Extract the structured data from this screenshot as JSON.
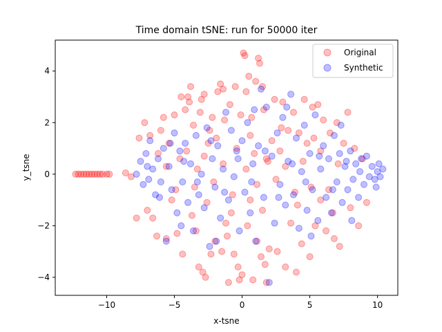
{
  "chart_data": {
    "type": "scatter",
    "title": "Time domain tSNE: run for 50000 iter",
    "xlabel": "x-tsne",
    "ylabel": "y_tsne",
    "xlim": [
      -13.8,
      11.5
    ],
    "ylim": [
      -4.7,
      5.2
    ],
    "xticks": [
      -10,
      -5,
      0,
      5,
      10
    ],
    "yticks": [
      -4,
      -2,
      0,
      2,
      4
    ],
    "grid": false,
    "legend": "top-right",
    "series": [
      {
        "name": "Original",
        "color": "#ff0000",
        "alpha": 0.25,
        "points": [
          [
            -12.3,
            0.0
          ],
          [
            -12.1,
            0.0
          ],
          [
            -11.9,
            0.0
          ],
          [
            -11.7,
            0.0
          ],
          [
            -11.5,
            0.0
          ],
          [
            -11.3,
            0.0
          ],
          [
            -11.1,
            0.0
          ],
          [
            -10.9,
            0.0
          ],
          [
            -10.7,
            0.0
          ],
          [
            -10.5,
            0.0
          ],
          [
            -10.3,
            0.0
          ],
          [
            -10.0,
            0.0
          ],
          [
            -9.8,
            0.0
          ],
          [
            -8.6,
            0.05
          ],
          [
            -8.2,
            -0.1
          ],
          [
            -7.8,
            -1.7
          ],
          [
            -7.6,
            1.4
          ],
          [
            -7.2,
            2.0
          ],
          [
            -7.0,
            -1.4
          ],
          [
            -6.8,
            1.5
          ],
          [
            -6.6,
            -1.7
          ],
          [
            -6.3,
            -2.4
          ],
          [
            -6.0,
            1.7
          ],
          [
            -5.8,
            2.2
          ],
          [
            -5.6,
            -2.5
          ],
          [
            -5.4,
            1.2
          ],
          [
            -5.2,
            -1.0
          ],
          [
            -5.0,
            2.3
          ],
          [
            -4.8,
            -2.3
          ],
          [
            -4.6,
            0.6
          ],
          [
            -4.5,
            3.0
          ],
          [
            -4.4,
            -3.1
          ],
          [
            -4.2,
            2.5
          ],
          [
            -4.0,
            3.0
          ],
          [
            -3.9,
            2.8
          ],
          [
            -3.8,
            3.4
          ],
          [
            -3.6,
            1.9
          ],
          [
            -3.4,
            -2.2
          ],
          [
            -3.3,
            0.2
          ],
          [
            -3.2,
            -3.6
          ],
          [
            -3.1,
            2.4
          ],
          [
            -3.0,
            2.9
          ],
          [
            -2.9,
            -3.8
          ],
          [
            -2.8,
            3.1
          ],
          [
            -2.7,
            -4.0
          ],
          [
            -2.6,
            -1.1
          ],
          [
            -2.4,
            1.7
          ],
          [
            -2.3,
            -3.1
          ],
          [
            -2.2,
            2.2
          ],
          [
            -2.0,
            -2.6
          ],
          [
            -1.9,
            1.4
          ],
          [
            -1.8,
            3.2
          ],
          [
            -1.6,
            3.5
          ],
          [
            -1.5,
            -3.0
          ],
          [
            -1.4,
            3.3
          ],
          [
            -1.3,
            2.1
          ],
          [
            -1.1,
            -2.4
          ],
          [
            -1.0,
            -4.2
          ],
          [
            -0.9,
            2.7
          ],
          [
            -0.8,
            -1.5
          ],
          [
            -0.6,
            -3.1
          ],
          [
            -0.5,
            3.4
          ],
          [
            -0.4,
            1.0
          ],
          [
            -0.3,
            -3.6
          ],
          [
            -0.2,
            -4.1
          ],
          [
            -0.1,
            2.3
          ],
          [
            0.0,
            -3.9
          ],
          [
            0.1,
            4.7
          ],
          [
            0.2,
            4.6
          ],
          [
            0.3,
            3.2
          ],
          [
            0.4,
            -2.0
          ],
          [
            0.5,
            3.8
          ],
          [
            0.6,
            -1.0
          ],
          [
            0.7,
            2.2
          ],
          [
            0.8,
            -4.1
          ],
          [
            0.9,
            0.8
          ],
          [
            1.0,
            3.6
          ],
          [
            1.1,
            -2.6
          ],
          [
            1.2,
            4.5
          ],
          [
            1.3,
            4.3
          ],
          [
            1.4,
            -3.2
          ],
          [
            1.5,
            3.4
          ],
          [
            1.6,
            2.5
          ],
          [
            1.7,
            -3.5
          ],
          [
            1.8,
            -4.2
          ],
          [
            1.9,
            0.5
          ],
          [
            2.0,
            -2.9
          ],
          [
            2.2,
            1.3
          ],
          [
            2.4,
            2.9
          ],
          [
            2.6,
            -3.0
          ],
          [
            2.8,
            0.9
          ],
          [
            3.0,
            2.8
          ],
          [
            3.2,
            -3.6
          ],
          [
            3.4,
            1.7
          ],
          [
            3.6,
            -1.9
          ],
          [
            3.8,
            2.4
          ],
          [
            4.0,
            -3.8
          ],
          [
            4.2,
            1.6
          ],
          [
            4.4,
            -2.7
          ],
          [
            4.6,
            2.9
          ],
          [
            4.8,
            1.2
          ],
          [
            5.0,
            -3.2
          ],
          [
            5.2,
            2.6
          ],
          [
            5.4,
            -2.0
          ],
          [
            5.6,
            2.7
          ],
          [
            5.8,
            -1.0
          ],
          [
            6.0,
            2.1
          ],
          [
            6.2,
            -2.2
          ],
          [
            6.5,
            1.6
          ],
          [
            6.8,
            -2.5
          ],
          [
            7.0,
            2.0
          ],
          [
            7.2,
            -2.8
          ],
          [
            7.5,
            1.2
          ],
          [
            7.8,
            2.4
          ],
          [
            8.0,
            -1.3
          ],
          [
            8.3,
            1.0
          ],
          [
            8.6,
            -2.0
          ],
          [
            8.9,
            0.6
          ],
          [
            9.2,
            -1.1
          ],
          [
            -5.6,
            0.3
          ],
          [
            -4.9,
            -0.6
          ],
          [
            -4.1,
            0.9
          ],
          [
            -3.5,
            -0.5
          ],
          [
            -2.8,
            0.7
          ],
          [
            -2.1,
            -0.3
          ],
          [
            -1.4,
            0.4
          ],
          [
            -0.7,
            -0.8
          ],
          [
            0.3,
            0.2
          ],
          [
            1.1,
            -0.4
          ],
          [
            1.8,
            0.6
          ],
          [
            2.5,
            -0.2
          ],
          [
            3.2,
            0.3
          ],
          [
            3.9,
            -0.7
          ],
          [
            4.5,
            0.5
          ],
          [
            5.1,
            -0.5
          ],
          [
            5.8,
            0.9
          ],
          [
            6.4,
            -0.6
          ],
          [
            7.1,
            0.4
          ],
          [
            -6.2,
            0.8
          ],
          [
            -3.7,
            -1.6
          ],
          [
            -2.5,
            1.2
          ],
          [
            -1.2,
            -1.9
          ],
          [
            0.6,
            1.5
          ],
          [
            1.5,
            -1.4
          ],
          [
            2.9,
            1.8
          ],
          [
            4.1,
            -1.2
          ],
          [
            5.3,
            1.4
          ],
          [
            6.7,
            -1.5
          ]
        ]
      },
      {
        "name": "Synthetic",
        "color": "#0000ff",
        "alpha": 0.25,
        "points": [
          [
            -7.8,
            0.0
          ],
          [
            -7.5,
            0.5
          ],
          [
            -7.3,
            -0.4
          ],
          [
            -7.1,
            0.8
          ],
          [
            -6.9,
            -0.2
          ],
          [
            -6.8,
            1.3
          ],
          [
            -6.6,
            0.2
          ],
          [
            -6.4,
            -0.8
          ],
          [
            -6.2,
            0.6
          ],
          [
            -6.0,
            -0.3
          ],
          [
            -5.8,
            1.0
          ],
          [
            -5.6,
            -2.6
          ],
          [
            -5.4,
            0.3
          ],
          [
            -5.2,
            -0.6
          ],
          [
            -5.0,
            1.6
          ],
          [
            -4.8,
            -1.5
          ],
          [
            -4.6,
            0.9
          ],
          [
            -4.4,
            -0.3
          ],
          [
            -4.2,
            1.2
          ],
          [
            -4.0,
            -1.1
          ],
          [
            -3.8,
            0.4
          ],
          [
            -3.6,
            -2.2
          ],
          [
            -3.4,
            1.5
          ],
          [
            -3.2,
            -0.8
          ],
          [
            -3.0,
            0.0
          ],
          [
            -2.8,
            -1.3
          ],
          [
            -2.6,
            1.8
          ],
          [
            -2.4,
            -2.8
          ],
          [
            -2.2,
            0.6
          ],
          [
            -2.0,
            -0.5
          ],
          [
            -1.8,
            1.1
          ],
          [
            -1.6,
            -1.7
          ],
          [
            -1.4,
            0.2
          ],
          [
            -1.2,
            2.4
          ],
          [
            -1.0,
            -1.0
          ],
          [
            -0.8,
            1.7
          ],
          [
            -0.6,
            -0.1
          ],
          [
            -0.4,
            0.9
          ],
          [
            -0.2,
            -2.2
          ],
          [
            0.0,
            1.3
          ],
          [
            0.2,
            -0.7
          ],
          [
            0.4,
            2.0
          ],
          [
            0.6,
            -1.5
          ],
          [
            0.8,
            0.4
          ],
          [
            1.0,
            -2.6
          ],
          [
            1.2,
            1.1
          ],
          [
            1.4,
            3.3
          ],
          [
            1.6,
            -0.9
          ],
          [
            1.8,
            2.6
          ],
          [
            2.0,
            -4.2
          ],
          [
            2.2,
            0.7
          ],
          [
            2.4,
            -1.9
          ],
          [
            2.6,
            1.6
          ],
          [
            2.8,
            -0.4
          ],
          [
            3.0,
            2.2
          ],
          [
            3.2,
            -1.2
          ],
          [
            3.4,
            0.5
          ],
          [
            3.6,
            3.1
          ],
          [
            3.8,
            -0.8
          ],
          [
            4.0,
            1.4
          ],
          [
            4.2,
            -2.1
          ],
          [
            4.4,
            0.1
          ],
          [
            4.6,
            1.9
          ],
          [
            4.8,
            -1.4
          ],
          [
            5.0,
            0.8
          ],
          [
            5.2,
            -0.6
          ],
          [
            5.4,
            2.3
          ],
          [
            5.6,
            -1.8
          ],
          [
            5.8,
            0.2
          ],
          [
            6.0,
            1.1
          ],
          [
            6.2,
            -0.9
          ],
          [
            6.4,
            0.6
          ],
          [
            6.6,
            -1.5
          ],
          [
            6.8,
            1.5
          ],
          [
            7.0,
            -0.3
          ],
          [
            7.2,
            0.8
          ],
          [
            7.4,
            -1.1
          ],
          [
            7.6,
            0.3
          ],
          [
            7.8,
            -0.6
          ],
          [
            8.0,
            0.9
          ],
          [
            8.2,
            -0.2
          ],
          [
            8.4,
            0.4
          ],
          [
            8.6,
            -0.9
          ],
          [
            8.8,
            0.6
          ],
          [
            9.0,
            -0.4
          ],
          [
            9.2,
            0.7
          ],
          [
            9.4,
            -0.1
          ],
          [
            9.6,
            0.3
          ],
          [
            9.8,
            -0.2
          ],
          [
            10.0,
            0.1
          ],
          [
            10.2,
            -0.1
          ],
          [
            10.4,
            0.2
          ],
          [
            10.1,
            0.4
          ],
          [
            9.9,
            -0.5
          ],
          [
            -7.0,
            0.3
          ],
          [
            -6.1,
            -0.9
          ],
          [
            -5.3,
            1.2
          ],
          [
            -4.3,
            0.5
          ],
          [
            -3.3,
            -0.3
          ],
          [
            -2.3,
            1.3
          ],
          [
            -1.3,
            -0.7
          ],
          [
            -0.3,
            0.6
          ],
          [
            0.7,
            -0.3
          ],
          [
            1.7,
            0.9
          ],
          [
            2.7,
            -0.9
          ],
          [
            3.7,
            0.4
          ],
          [
            4.7,
            -0.3
          ],
          [
            5.7,
            0.7
          ],
          [
            6.7,
            -0.6
          ],
          [
            7.7,
            0.5
          ],
          [
            8.7,
            0.1
          ],
          [
            -4.5,
            -2.0
          ],
          [
            -1.9,
            -2.6
          ],
          [
            0.9,
            2.5
          ],
          [
            3.3,
            2.6
          ],
          [
            5.1,
            -2.4
          ],
          [
            7.3,
            1.9
          ],
          [
            8.1,
            -1.8
          ]
        ]
      }
    ]
  }
}
